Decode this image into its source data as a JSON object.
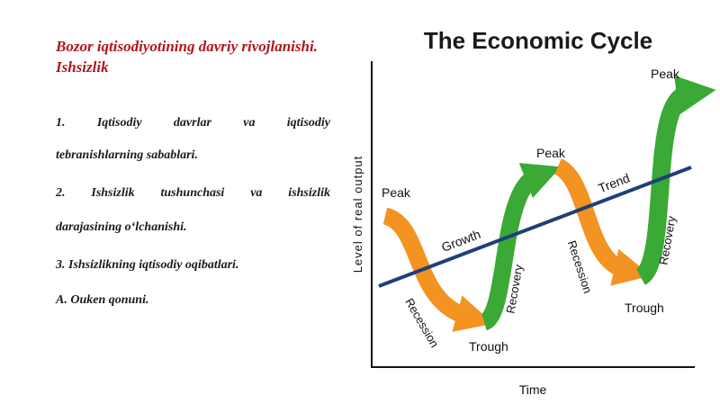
{
  "slide": {
    "title": "Bozor iqtisodiyotining davriy rivojlanishi. Ishsizlik",
    "items": [
      {
        "line1": "1.   Iqtisodiy   davrlar   va   iqtisodiy",
        "line2": "tebranishlarning sabablari."
      },
      {
        "line1": "2.   Ishsizlik   tushunchasi   va   ishsizlik",
        "line2": "darajasining o‘lchanishi."
      },
      {
        "line1": "3. Ishsizlikning iqtisodiy oqibatlari."
      },
      {
        "line1": "A. Ouken qonuni."
      }
    ]
  },
  "diagram": {
    "title": "The Economic Cycle",
    "y_axis_label": "Level of real output",
    "x_axis_label": "Time",
    "labels": {
      "peak": "Peak",
      "trough": "Trough",
      "growth": "Growth",
      "trend": "Trend",
      "recession": "Recession",
      "recovery": "Recovery"
    },
    "colors": {
      "recession": "#f39321",
      "recovery": "#3aa935",
      "trend": "#1f3f7a",
      "axis": "#111111",
      "title": "#1a1a1a"
    }
  }
}
